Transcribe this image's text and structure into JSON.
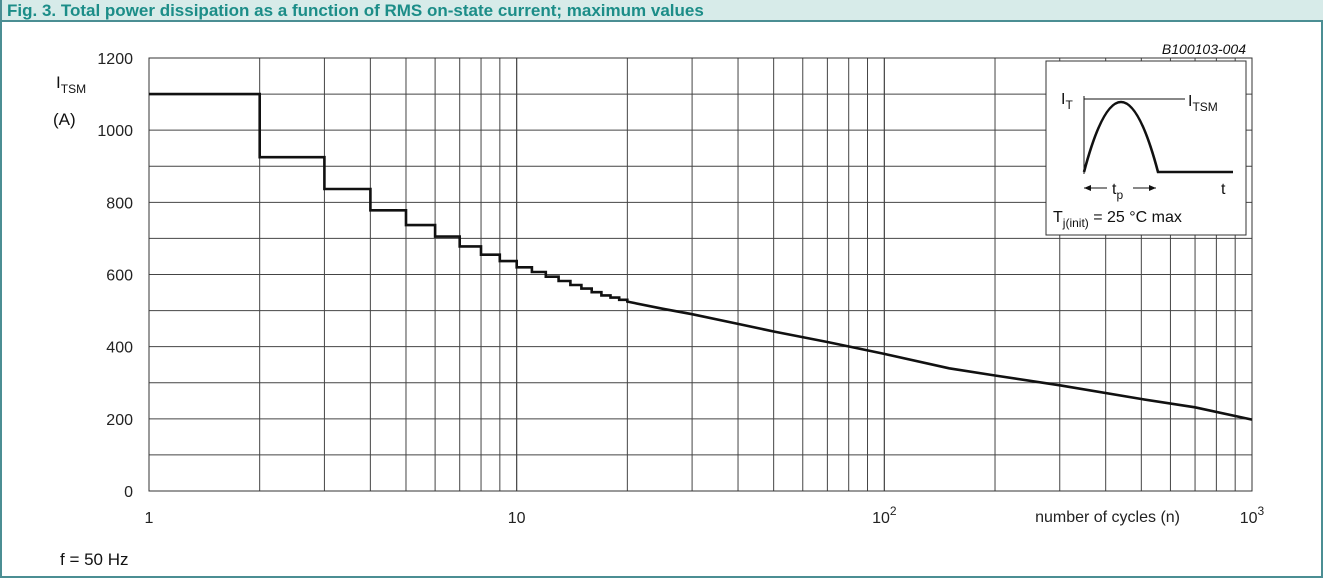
{
  "figure": {
    "title": "Fig. 3.   Total power dissipation as a function of RMS on-state current; maximum values",
    "figure_id": "B100103-004",
    "note": "f = 50 Hz"
  },
  "colors": {
    "accent": "#1c8d88",
    "header_bg": "#d7ebe9",
    "border": "#4b8e93",
    "curve": "#111111"
  },
  "inset": {
    "i_t": "I",
    "i_t_sub": "T",
    "i_tsm": "I",
    "i_tsm_sub": "TSM",
    "t": "t",
    "tp": "t",
    "tp_sub": "p",
    "tj_main": "T",
    "tj_sub": "j(init)",
    "tj_rest": " = 25 °C max"
  },
  "chart_data": {
    "type": "line",
    "title": "Fig. 3.   Total power dissipation as a function of RMS on-state current; maximum values",
    "xscale": "log",
    "xlim": [
      1,
      1000
    ],
    "ylim": [
      0,
      1200
    ],
    "ylabel": "I_TSM (A)",
    "xlabel": "number of cycles (n)",
    "grid": true,
    "y_ticks": [
      "0",
      "200",
      "400",
      "600",
      "800",
      "1000",
      "1200"
    ],
    "x_tick_labels": [
      {
        "value": 1,
        "base": "1",
        "exp": ""
      },
      {
        "value": 10,
        "base": "10",
        "exp": ""
      },
      {
        "value": 100,
        "base": "10",
        "exp": "2"
      },
      {
        "value": 1000,
        "base": "10",
        "exp": "3"
      }
    ],
    "series": [
      {
        "x": [
          1,
          2,
          2,
          3,
          3,
          4,
          4,
          5,
          5,
          6,
          6,
          7,
          7,
          8,
          8,
          9,
          9,
          10,
          10,
          11,
          11,
          12,
          12,
          13,
          13,
          14,
          14,
          15,
          15,
          16,
          16,
          17,
          17,
          18,
          18,
          19,
          19,
          20,
          20,
          25,
          30,
          40,
          50,
          70,
          100,
          150,
          200,
          300,
          500,
          700,
          1000
        ],
        "y": [
          1100,
          1100,
          925,
          925,
          837,
          837,
          778,
          778,
          737,
          737,
          705,
          705,
          678,
          678,
          655,
          655,
          637,
          637,
          620,
          620,
          607,
          607,
          594,
          594,
          582,
          582,
          571,
          571,
          561,
          561,
          551,
          551,
          542,
          542,
          536,
          536,
          530,
          530,
          525,
          505,
          490,
          463,
          442,
          413,
          380,
          340,
          320,
          293,
          255,
          232,
          198
        ]
      }
    ]
  }
}
